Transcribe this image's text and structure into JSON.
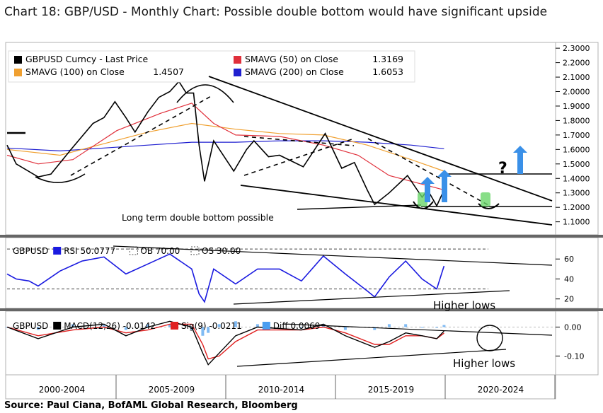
{
  "title": "Chart 18: GBP/USD - Monthly Chart: Possible double bottom would have significant upside",
  "source": "Source: Paul Ciana, BofAML Global Research, Bloomberg",
  "colors": {
    "price": "#000000",
    "ma50": "#e0303b",
    "ma100": "#f0a030",
    "ma200": "#2020d0",
    "rsi": "#1a1ae0",
    "macd": "#000000",
    "signal": "#e02020",
    "diff": "#4a9ef0",
    "arrow": "#3a90e8",
    "highlight": "#6ad66a"
  },
  "chart_data": [
    {
      "type": "line",
      "name": "price",
      "legend": [
        {
          "key": "price",
          "label": "GBPUSD Curncy - Last Price",
          "value": ""
        },
        {
          "key": "ma50",
          "label": "SMAVG (50)  on Close",
          "value": "1.3169"
        },
        {
          "key": "ma100",
          "label": "SMAVG (100)  on Close",
          "value": "1.4507"
        },
        {
          "key": "ma200",
          "label": "SMAVG (200)  on Close",
          "value": "1.6053"
        }
      ],
      "ylim": [
        1.02,
        2.33
      ],
      "yticks": [
        "2.3000",
        "2.2000",
        "2.1000",
        "2.0000",
        "1.9000",
        "1.8000",
        "1.7000",
        "1.6000",
        "1.5000",
        "1.4000",
        "1.3000",
        "1.2000",
        "1.1000"
      ],
      "xlabels": [
        "2000-2004",
        "2005-2009",
        "2010-2014",
        "2015-2019",
        "2020-2024"
      ],
      "x_range": [
        "2000-01",
        "2025-01"
      ],
      "price": [
        [
          "2000-01",
          1.63
        ],
        [
          "2000-06",
          1.5
        ],
        [
          "2001-06",
          1.41
        ],
        [
          "2002-01",
          1.43
        ],
        [
          "2002-12",
          1.6
        ],
        [
          "2003-12",
          1.78
        ],
        [
          "2004-06",
          1.82
        ],
        [
          "2004-12",
          1.93
        ],
        [
          "2005-06",
          1.82
        ],
        [
          "2005-11",
          1.72
        ],
        [
          "2006-06",
          1.86
        ],
        [
          "2006-12",
          1.96
        ],
        [
          "2007-06",
          2.0
        ],
        [
          "2007-11",
          2.07
        ],
        [
          "2008-03",
          1.99
        ],
        [
          "2008-07",
          1.99
        ],
        [
          "2008-10",
          1.63
        ],
        [
          "2009-01",
          1.38
        ],
        [
          "2009-06",
          1.66
        ],
        [
          "2010-05",
          1.45
        ],
        [
          "2010-12",
          1.6
        ],
        [
          "2011-04",
          1.66
        ],
        [
          "2011-12",
          1.55
        ],
        [
          "2012-06",
          1.56
        ],
        [
          "2013-07",
          1.48
        ],
        [
          "2014-07",
          1.71
        ],
        [
          "2015-04",
          1.47
        ],
        [
          "2015-11",
          1.51
        ],
        [
          "2016-06",
          1.32
        ],
        [
          "2016-10",
          1.22
        ],
        [
          "2017-06",
          1.3
        ],
        [
          "2018-04",
          1.42
        ],
        [
          "2018-12",
          1.27
        ],
        [
          "2019-03",
          1.32
        ],
        [
          "2019-08",
          1.21
        ],
        [
          "2019-12",
          1.32
        ]
      ],
      "ma50": [
        [
          "2000-01",
          1.56
        ],
        [
          "2001-06",
          1.5
        ],
        [
          "2003-01",
          1.53
        ],
        [
          "2005-01",
          1.73
        ],
        [
          "2007-01",
          1.85
        ],
        [
          "2008-06",
          1.92
        ],
        [
          "2009-06",
          1.78
        ],
        [
          "2010-06",
          1.7
        ],
        [
          "2012-06",
          1.69
        ],
        [
          "2014-06",
          1.63
        ],
        [
          "2016-01",
          1.56
        ],
        [
          "2017-06",
          1.42
        ],
        [
          "2019-12",
          1.32
        ]
      ],
      "ma100": [
        [
          "2000-01",
          1.6
        ],
        [
          "2002-06",
          1.56
        ],
        [
          "2004-06",
          1.64
        ],
        [
          "2006-06",
          1.72
        ],
        [
          "2008-06",
          1.78
        ],
        [
          "2010-06",
          1.74
        ],
        [
          "2012-06",
          1.71
        ],
        [
          "2014-06",
          1.7
        ],
        [
          "2016-06",
          1.63
        ],
        [
          "2018-06",
          1.53
        ],
        [
          "2019-12",
          1.45
        ]
      ],
      "ma200": [
        [
          "2000-01",
          1.61
        ],
        [
          "2002-06",
          1.59
        ],
        [
          "2004-06",
          1.61
        ],
        [
          "2006-06",
          1.63
        ],
        [
          "2008-06",
          1.65
        ],
        [
          "2010-06",
          1.65
        ],
        [
          "2012-06",
          1.66
        ],
        [
          "2014-06",
          1.66
        ],
        [
          "2016-06",
          1.65
        ],
        [
          "2018-06",
          1.63
        ],
        [
          "2019-12",
          1.605
        ]
      ],
      "annotations": {
        "double_bottom": "Long term double bottom possible",
        "question": "?"
      }
    },
    {
      "type": "line",
      "name": "rsi",
      "legend": [
        {
          "label": "GBPUSD"
        },
        {
          "key": "rsi",
          "label": "RSI 50.0777"
        },
        {
          "label": "OB 70.00"
        },
        {
          "label": "OS 30.00"
        }
      ],
      "ylim": [
        12,
        80
      ],
      "yticks": [
        "60",
        "40",
        "20"
      ],
      "ob": 70,
      "os": 30,
      "rsi": [
        [
          "2000-01",
          45
        ],
        [
          "2000-06",
          40
        ],
        [
          "2001-01",
          38
        ],
        [
          "2001-06",
          33
        ],
        [
          "2002-06",
          48
        ],
        [
          "2003-06",
          58
        ],
        [
          "2004-06",
          62
        ],
        [
          "2005-06",
          45
        ],
        [
          "2006-06",
          55
        ],
        [
          "2007-06",
          65
        ],
        [
          "2008-06",
          50
        ],
        [
          "2008-10",
          25
        ],
        [
          "2009-01",
          17
        ],
        [
          "2009-06",
          50
        ],
        [
          "2010-06",
          35
        ],
        [
          "2011-06",
          50
        ],
        [
          "2012-06",
          50
        ],
        [
          "2013-06",
          38
        ],
        [
          "2014-06",
          63
        ],
        [
          "2015-06",
          45
        ],
        [
          "2016-06",
          28
        ],
        [
          "2016-10",
          22
        ],
        [
          "2017-06",
          42
        ],
        [
          "2018-03",
          58
        ],
        [
          "2018-12",
          40
        ],
        [
          "2019-08",
          30
        ],
        [
          "2019-12",
          53
        ]
      ],
      "annotation": "Higher lows"
    },
    {
      "type": "line",
      "name": "macd",
      "legend": [
        {
          "label": "GBPUSD"
        },
        {
          "key": "macd",
          "label": "MACD(12,26) -0.0142"
        },
        {
          "key": "signal",
          "label": "Sig(9) -0.0211"
        },
        {
          "key": "diff",
          "label": "Diff 0.0069"
        }
      ],
      "ylim": [
        -0.16,
        0.05
      ],
      "yticks": [
        "0.00",
        "-0.10"
      ],
      "macd": [
        [
          "2000-01",
          0.0
        ],
        [
          "2001-06",
          -0.04
        ],
        [
          "2003-01",
          0.0
        ],
        [
          "2004-06",
          0.01
        ],
        [
          "2005-06",
          -0.03
        ],
        [
          "2006-06",
          0.0
        ],
        [
          "2007-06",
          0.02
        ],
        [
          "2008-06",
          0.0
        ],
        [
          "2008-12",
          -0.09
        ],
        [
          "2009-03",
          -0.13
        ],
        [
          "2009-09",
          -0.09
        ],
        [
          "2010-06",
          -0.03
        ],
        [
          "2011-06",
          0.0
        ],
        [
          "2013-06",
          -0.01
        ],
        [
          "2014-06",
          0.01
        ],
        [
          "2015-06",
          -0.03
        ],
        [
          "2016-10",
          -0.07
        ],
        [
          "2017-06",
          -0.05
        ],
        [
          "2018-03",
          -0.02
        ],
        [
          "2018-12",
          -0.03
        ],
        [
          "2019-08",
          -0.04
        ],
        [
          "2019-12",
          -0.014
        ]
      ],
      "signal": [
        [
          "2000-01",
          0.0
        ],
        [
          "2001-06",
          -0.03
        ],
        [
          "2003-01",
          -0.01
        ],
        [
          "2004-06",
          0.0
        ],
        [
          "2005-06",
          -0.02
        ],
        [
          "2006-06",
          -0.01
        ],
        [
          "2007-06",
          0.01
        ],
        [
          "2008-06",
          0.01
        ],
        [
          "2008-12",
          -0.06
        ],
        [
          "2009-03",
          -0.11
        ],
        [
          "2009-09",
          -0.1
        ],
        [
          "2010-06",
          -0.05
        ],
        [
          "2011-06",
          -0.01
        ],
        [
          "2013-06",
          -0.01
        ],
        [
          "2014-06",
          0.0
        ],
        [
          "2015-06",
          -0.02
        ],
        [
          "2016-10",
          -0.06
        ],
        [
          "2017-06",
          -0.06
        ],
        [
          "2018-03",
          -0.03
        ],
        [
          "2018-12",
          -0.03
        ],
        [
          "2019-08",
          -0.04
        ],
        [
          "2019-12",
          -0.021
        ]
      ],
      "annotation": "Higher lows"
    }
  ]
}
